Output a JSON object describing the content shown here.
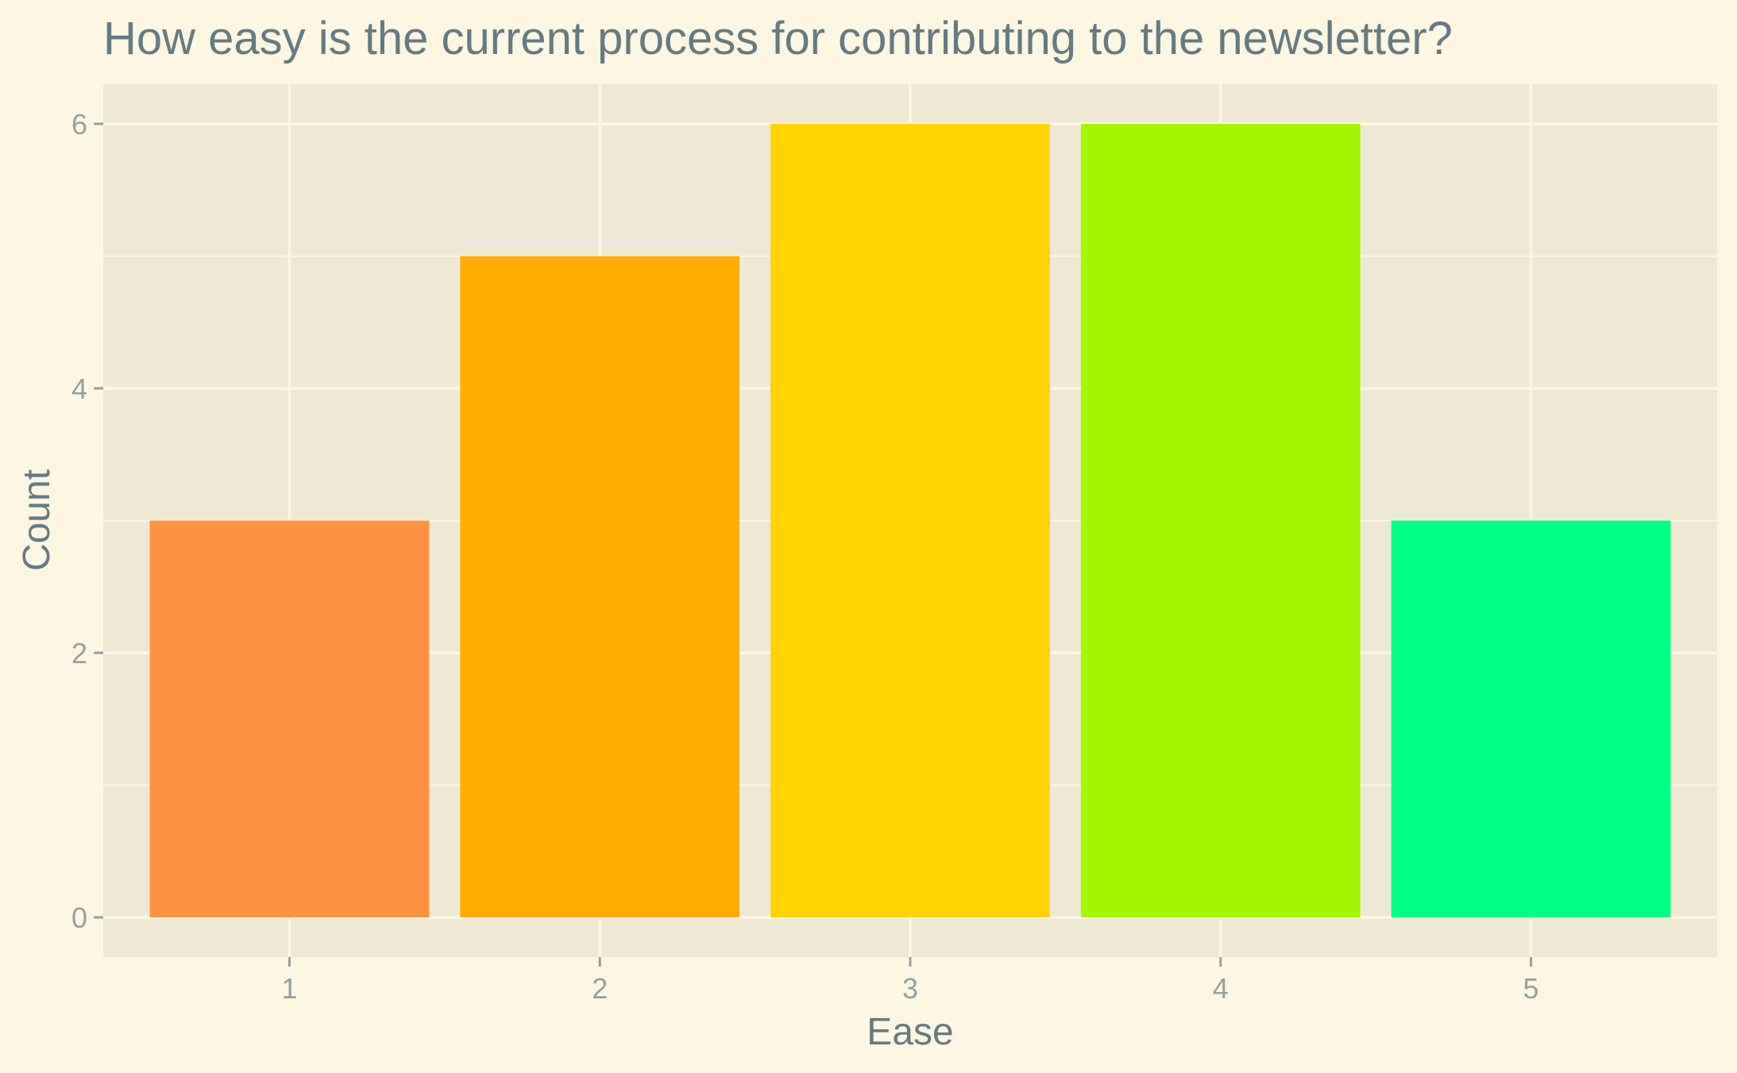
{
  "chart_data": {
    "type": "bar",
    "title": "How easy is the current process for contributing to the newsletter?",
    "xlabel": "Ease",
    "ylabel": "Count",
    "categories": [
      "1",
      "2",
      "3",
      "4",
      "5"
    ],
    "values": [
      3,
      5,
      6,
      6,
      3
    ],
    "colors": [
      "#ff9143",
      "#ffad00",
      "#ffd300",
      "#a3f600",
      "#00ff82"
    ],
    "ylim": [
      -0.3,
      6.3
    ],
    "yticks": [
      0,
      2,
      4,
      6
    ],
    "yminor": [
      1,
      3,
      5
    ],
    "grid": true,
    "legend": "none"
  },
  "theme": {
    "page_background": "#fdf6e3",
    "panel_background": "#eee8d5",
    "grid_color": "#fdf6e3",
    "title_color": "#657b83",
    "tick_color": "#93a1a1"
  }
}
